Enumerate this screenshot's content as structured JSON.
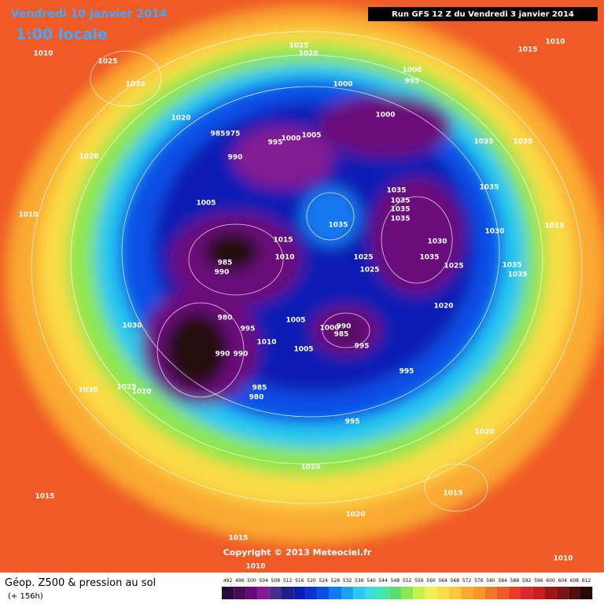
{
  "header": {
    "date": "Vendredi 10 janvier 2014",
    "time": "1:00 locale",
    "run": "Run GFS 12 Z du Vendredi 3 janvier 2014"
  },
  "isobar_labels": [
    1010,
    1025,
    1030,
    1020,
    1025,
    1020,
    1010,
    1015,
    1000,
    995,
    1000,
    1000,
    985,
    975,
    995,
    1000,
    1005,
    990,
    1035,
    1035,
    1020,
    1005,
    1010,
    1035,
    1035,
    1035,
    1035,
    1035,
    1035,
    1015,
    1030,
    1015,
    1030,
    1010,
    1025,
    1035,
    1025,
    985,
    990,
    1025,
    1035,
    1035,
    1020,
    980,
    1005,
    1000,
    990,
    985,
    995,
    1030,
    1010,
    995,
    1005,
    990,
    990,
    995,
    985,
    980,
    1025,
    1020,
    1030,
    995,
    1020,
    1020,
    1015,
    1015,
    1020,
    1015,
    1010,
    1010
  ],
  "copyright": "Copyright © 2013 Meteociel.fr",
  "footer": {
    "title": "Géop. Z500 & pression au sol",
    "lead": "(+ 156h)"
  },
  "legend": {
    "levels": [
      492,
      496,
      500,
      504,
      508,
      512,
      516,
      520,
      524,
      528,
      532,
      536,
      540,
      544,
      548,
      552,
      556,
      560,
      564,
      568,
      572,
      576,
      580,
      584,
      588,
      592,
      596,
      600,
      604,
      608,
      612
    ],
    "colors": [
      "#2a0a3a",
      "#4a0a5a",
      "#6a0a7a",
      "#821a92",
      "#4a2a8a",
      "#1e1e8c",
      "#0a1eb4",
      "#0a32d2",
      "#0a50e6",
      "#1478f0",
      "#1ea0f0",
      "#28c8f0",
      "#3cdcdc",
      "#46e6aa",
      "#5adc6e",
      "#8ce650",
      "#c8f04b",
      "#f0f050",
      "#fadc46",
      "#fac83c",
      "#faaa32",
      "#fa9628",
      "#f07828",
      "#f05a28",
      "#e63c28",
      "#dc2828",
      "#c81e1e",
      "#a01414",
      "#781414",
      "#501010",
      "#280808"
    ]
  }
}
